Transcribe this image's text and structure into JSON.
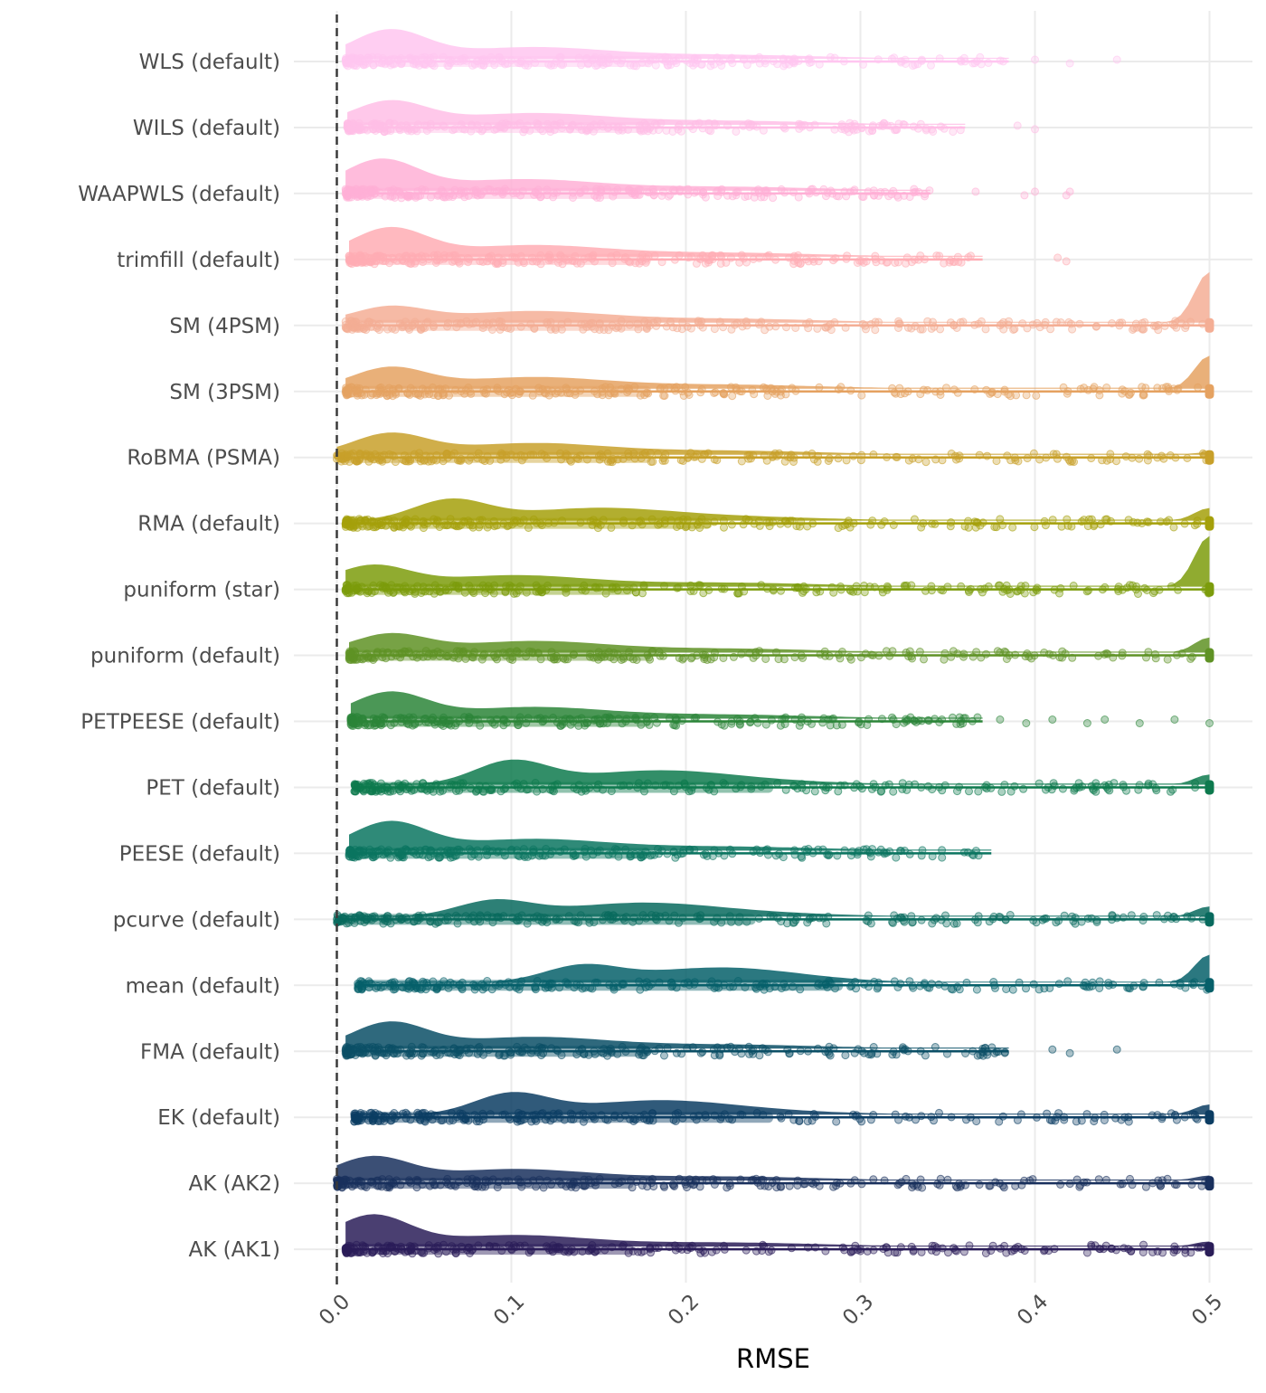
{
  "chart_data": {
    "type": "raincloud",
    "title": "",
    "xlabel": "RMSE",
    "ylabel": "",
    "xlim": [
      0.0,
      0.5
    ],
    "xticks": [
      0.0,
      0.1,
      0.2,
      0.3,
      0.4,
      0.5
    ],
    "xtick_labels": [
      "0.0",
      "0.1",
      "0.2",
      "0.3",
      "0.4",
      "0.5"
    ],
    "reference_line": 0.0,
    "grid": true,
    "legend": "none",
    "series": [
      {
        "name": "WLS (default)",
        "color": "#FFC6F0",
        "xmin": 0.005,
        "xmax": 0.385,
        "outliers": [
          0.4,
          0.42,
          0.447
        ],
        "peak": 0.03,
        "density_peak": 0.55,
        "tail_peak": 0.0,
        "capped": false
      },
      {
        "name": "WILS (default)",
        "color": "#FFBEE6",
        "xmin": 0.006,
        "xmax": 0.36,
        "outliers": [
          0.39,
          0.4
        ],
        "peak": 0.03,
        "density_peak": 0.45,
        "tail_peak": 0.0,
        "capped": false
      },
      {
        "name": "WAAPWLS (default)",
        "color": "#FFB0D6",
        "xmin": 0.005,
        "xmax": 0.34,
        "outliers": [
          0.366,
          0.394,
          0.4,
          0.418,
          0.42
        ],
        "peak": 0.025,
        "density_peak": 0.6,
        "tail_peak": 0.0,
        "capped": false
      },
      {
        "name": "trimfill (default)",
        "color": "#FFADB4",
        "xmin": 0.007,
        "xmax": 0.37,
        "outliers": [
          0.413,
          0.418
        ],
        "peak": 0.03,
        "density_peak": 0.55,
        "tail_peak": 0.0,
        "capped": false
      },
      {
        "name": "SM (4PSM)",
        "color": "#F4AE95",
        "xmin": 0.005,
        "xmax": 0.5,
        "outliers": [],
        "peak": 0.03,
        "density_peak": 0.3,
        "tail_peak": 1.0,
        "capped": true
      },
      {
        "name": "SM (3PSM)",
        "color": "#E5A261",
        "xmin": 0.005,
        "xmax": 0.5,
        "outliers": [],
        "peak": 0.03,
        "density_peak": 0.4,
        "tail_peak": 0.65,
        "capped": true
      },
      {
        "name": "RoBMA (PSMA)",
        "color": "#C8A02A",
        "xmin": 0.0,
        "xmax": 0.5,
        "outliers": [],
        "peak": 0.03,
        "density_peak": 0.4,
        "tail_peak": 0.05,
        "capped": true
      },
      {
        "name": "RMA (default)",
        "color": "#A5A00B",
        "xmin": 0.005,
        "xmax": 0.5,
        "outliers": [],
        "peak": 0.065,
        "density_peak": 0.4,
        "tail_peak": 0.25,
        "capped": true
      },
      {
        "name": "puniform (star)",
        "color": "#7C9C0C",
        "xmin": 0.005,
        "xmax": 0.5,
        "outliers": [],
        "peak": 0.02,
        "density_peak": 0.4,
        "tail_peak": 1.0,
        "capped": true
      },
      {
        "name": "puniform (default)",
        "color": "#5F9225",
        "xmin": 0.007,
        "xmax": 0.5,
        "outliers": [],
        "peak": 0.03,
        "density_peak": 0.35,
        "tail_peak": 0.3,
        "capped": true
      },
      {
        "name": "PETPEESE (default)",
        "color": "#2C8538",
        "xmin": 0.008,
        "xmax": 0.37,
        "outliers": [
          0.38,
          0.395,
          0.41,
          0.43,
          0.44,
          0.46,
          0.48,
          0.5
        ],
        "peak": 0.03,
        "density_peak": 0.5,
        "tail_peak": 0.0,
        "capped": false
      },
      {
        "name": "PET (default)",
        "color": "#0E7A4E",
        "xmin": 0.01,
        "xmax": 0.5,
        "outliers": [],
        "peak": 0.1,
        "density_peak": 0.45,
        "tail_peak": 0.2,
        "capped": true
      },
      {
        "name": "PEESE (default)",
        "color": "#0B7560",
        "xmin": 0.007,
        "xmax": 0.375,
        "outliers": [],
        "peak": 0.03,
        "density_peak": 0.55,
        "tail_peak": 0.0,
        "capped": false
      },
      {
        "name": "pcurve (default)",
        "color": "#086A5E",
        "xmin": 0.0,
        "xmax": 0.5,
        "outliers": [],
        "peak": 0.09,
        "density_peak": 0.3,
        "tail_peak": 0.2,
        "capped": true
      },
      {
        "name": "mean (default)",
        "color": "#06606A",
        "xmin": 0.012,
        "xmax": 0.5,
        "outliers": [],
        "peak": 0.14,
        "density_peak": 0.3,
        "tail_peak": 0.55,
        "capped": true
      },
      {
        "name": "FMA (default)",
        "color": "#0B4F66",
        "xmin": 0.005,
        "xmax": 0.385,
        "outliers": [
          0.41,
          0.42,
          0.447
        ],
        "peak": 0.03,
        "density_peak": 0.5,
        "tail_peak": 0.0,
        "capped": false
      },
      {
        "name": "EK (default)",
        "color": "#0C3D63",
        "xmin": 0.01,
        "xmax": 0.5,
        "outliers": [],
        "peak": 0.1,
        "density_peak": 0.4,
        "tail_peak": 0.2,
        "capped": true
      },
      {
        "name": "AK (AK2)",
        "color": "#19305D",
        "xmin": 0.0,
        "xmax": 0.5,
        "outliers": [],
        "peak": 0.02,
        "density_peak": 0.45,
        "tail_peak": 0.1,
        "capped": true
      },
      {
        "name": "AK (AK1)",
        "color": "#2A1D58",
        "xmin": 0.005,
        "xmax": 0.5,
        "outliers": [
          0.27,
          0.28,
          0.29,
          0.3,
          0.315,
          0.355
        ],
        "peak": 0.02,
        "density_peak": 0.6,
        "tail_peak": 0.1,
        "capped": true
      }
    ]
  }
}
